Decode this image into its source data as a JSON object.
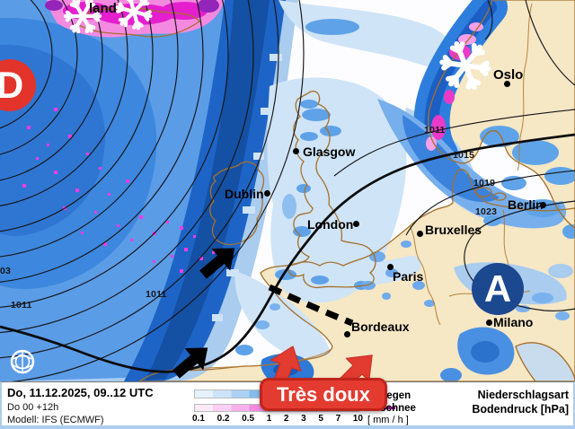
{
  "map": {
    "region_label": "land",
    "low_pressure_letter": "D",
    "high_pressure_letter": "A",
    "annotation_banner": "Très doux",
    "cities": [
      {
        "name": "Glasgow"
      },
      {
        "name": "Dublin"
      },
      {
        "name": "London"
      },
      {
        "name": "Bruxelles"
      },
      {
        "name": "Paris"
      },
      {
        "name": "Bordeaux"
      },
      {
        "name": "Berlin"
      },
      {
        "name": "Oslo"
      },
      {
        "name": "Milano"
      }
    ],
    "isobar_labels": [
      "03",
      "1011",
      "1011",
      "1011",
      "1015",
      "1019",
      "1023"
    ],
    "colors": {
      "low_symbol_red": "#e3342b",
      "high_symbol_blue": "#1c4890",
      "banner_red": "#e43b30",
      "land": "#f6e7c5",
      "sea": "#fdfdff",
      "coastline": "#a5702c"
    }
  },
  "footer": {
    "datetime_line": "Do, 11.12.2025, 09..12 UTC",
    "run_line": "Do 00 +12h",
    "model_line": "Modell: IFS (ECMWF)",
    "type_title": "Niederschlagsart",
    "pressure_title": "Bodendruck [hPa]",
    "legend": {
      "rain_label": "Regen",
      "snow_label": "Schnee",
      "unit_label": "[ mm / h ]",
      "ticks": [
        "0.1",
        "0.2",
        "0.5",
        "1",
        "2",
        "3",
        "5",
        "7",
        "10"
      ],
      "rain_colors": [
        "#e6f1fc",
        "#cde3f9",
        "#abd2f5",
        "#84bcf0",
        "#5ca4ea",
        "#3a8ee3",
        "#2477d6",
        "#1a60c0",
        "#1450a6"
      ],
      "snow_colors": [
        "#fdeaf9",
        "#fbd0f3",
        "#f8b0ea",
        "#f48ae0",
        "#ef60d4",
        "#e93ac8",
        "#d020ae",
        "#a81890",
        "#7c1173"
      ]
    }
  }
}
